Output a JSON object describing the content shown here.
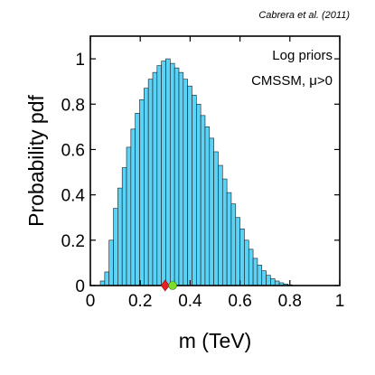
{
  "chart_data": {
    "type": "bar",
    "citation": "Cabrera et al. (2011)",
    "annotations": [
      "Log priors",
      "CMSSM, μ>0"
    ],
    "xlabel": "m (TeV)",
    "ylabel": "Probability pdf",
    "xlim": [
      0,
      1
    ],
    "ylim": [
      0,
      1.1
    ],
    "xticks": [
      "0",
      "0.2",
      "0.4",
      "0.6",
      "0.8",
      "1"
    ],
    "yticks": [
      "0",
      "0.2",
      "0.4",
      "0.6",
      "0.8",
      "1"
    ],
    "bar_color": "#5bd3f7",
    "bin_width": 0.0175,
    "bins_start": [
      0.04,
      0.0575,
      0.075,
      0.0925,
      0.11,
      0.1275,
      0.145,
      0.1625,
      0.18,
      0.1975,
      0.215,
      0.2325,
      0.25,
      0.2675,
      0.285,
      0.3025,
      0.32,
      0.3375,
      0.355,
      0.3725,
      0.39,
      0.4075,
      0.425,
      0.4425,
      0.46,
      0.4775,
      0.495,
      0.5125,
      0.53,
      0.5475,
      0.565,
      0.5825,
      0.6,
      0.6175,
      0.635,
      0.6525,
      0.67,
      0.6875,
      0.705,
      0.7225,
      0.74,
      0.7575,
      0.775,
      0.7925
    ],
    "values": [
      0.02,
      0.06,
      0.2,
      0.34,
      0.43,
      0.52,
      0.61,
      0.69,
      0.76,
      0.82,
      0.87,
      0.91,
      0.94,
      0.97,
      0.99,
      1.0,
      0.98,
      0.96,
      0.94,
      0.91,
      0.88,
      0.84,
      0.8,
      0.75,
      0.7,
      0.65,
      0.59,
      0.53,
      0.47,
      0.41,
      0.36,
      0.3,
      0.25,
      0.2,
      0.16,
      0.12,
      0.09,
      0.065,
      0.045,
      0.03,
      0.02,
      0.012,
      0.007,
      0.003
    ],
    "markers": [
      {
        "shape": "diamond",
        "x": 0.3,
        "color": "#e82020"
      },
      {
        "shape": "circle",
        "x": 0.33,
        "color": "#7fdb2a"
      }
    ]
  }
}
